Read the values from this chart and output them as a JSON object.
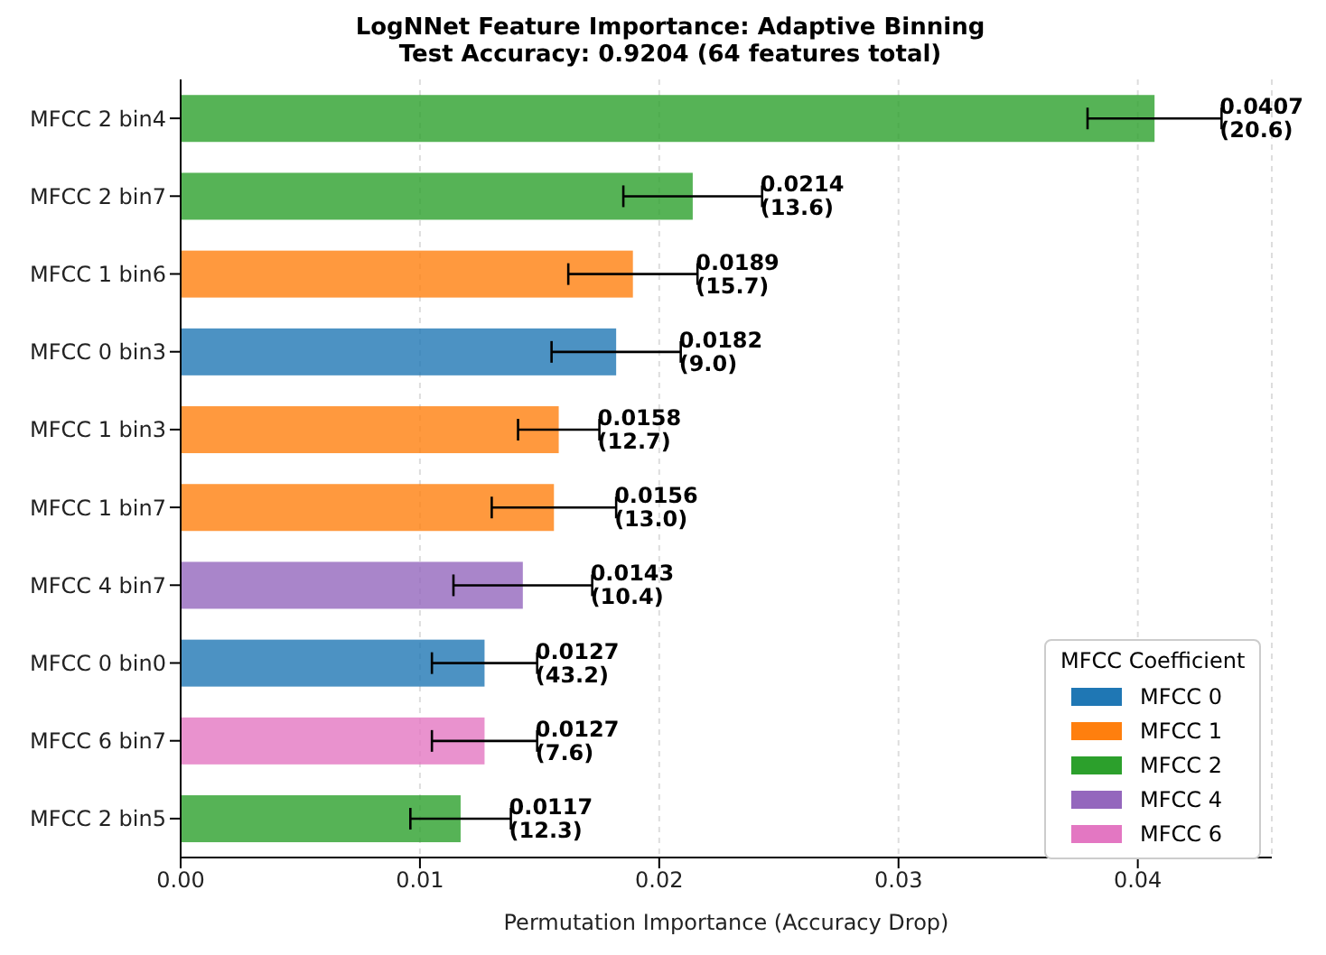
{
  "chart_data": {
    "type": "bar",
    "orientation": "horizontal",
    "stacked": true,
    "title": "LogNNet Feature Importance: Adaptive Binning\nTest Accuracy: 0.9204 (64 features total)",
    "xlabel": "Permutation Importance (Accuracy Drop)",
    "legend_title": "MFCC Coefficient",
    "legend": "bottom right",
    "grid": "x",
    "categories": [
      "MFCC 2 bin4",
      "MFCC 2 bin7",
      "MFCC 1 bin6",
      "MFCC 0 bin3",
      "MFCC 1 bin3",
      "MFCC 1 bin7",
      "MFCC 4 bin7",
      "MFCC 0 bin0",
      "MFCC 6 bin7",
      "MFCC 2 bin5"
    ],
    "series": [
      {
        "name": "MFCC 0",
        "color": "#1f77b4",
        "values": [
          null,
          null,
          null,
          0.0182,
          null,
          null,
          null,
          0.0127,
          null,
          null
        ],
        "errors": [
          null,
          null,
          null,
          0.0027,
          null,
          null,
          null,
          0.0022,
          null,
          null
        ],
        "value_labels": [
          null,
          null,
          null,
          "0.0182\n(9.0)",
          null,
          null,
          null,
          "0.0127\n(43.2)",
          null,
          null
        ]
      },
      {
        "name": "MFCC 1",
        "color": "#ff7f0e",
        "values": [
          null,
          null,
          0.0189,
          null,
          0.0158,
          0.0156,
          null,
          null,
          null,
          null
        ],
        "errors": [
          null,
          null,
          0.0027,
          null,
          0.0017,
          0.0026,
          null,
          null,
          null,
          null
        ],
        "value_labels": [
          null,
          null,
          "0.0189\n(15.7)",
          null,
          "0.0158\n(12.7)",
          "0.0156\n(13.0)",
          null,
          null,
          null,
          null
        ]
      },
      {
        "name": "MFCC 2",
        "color": "#2ca02c",
        "values": [
          0.0407,
          0.0214,
          null,
          null,
          null,
          null,
          null,
          null,
          null,
          0.0117
        ],
        "errors": [
          0.0028,
          0.0029,
          null,
          null,
          null,
          null,
          null,
          null,
          null,
          0.0021
        ],
        "value_labels": [
          "0.0407\n(20.6)",
          "0.0214\n(13.6)",
          null,
          null,
          null,
          null,
          null,
          null,
          null,
          "0.0117\n(12.3)"
        ]
      },
      {
        "name": "MFCC 4",
        "color": "#9467bd",
        "values": [
          null,
          null,
          null,
          null,
          null,
          null,
          0.0143,
          null,
          null,
          null
        ],
        "errors": [
          null,
          null,
          null,
          null,
          null,
          null,
          0.0029,
          null,
          null,
          null
        ],
        "value_labels": [
          null,
          null,
          null,
          null,
          null,
          null,
          "0.0143\n(10.4)",
          null,
          null,
          null
        ]
      },
      {
        "name": "MFCC 6",
        "color": "#e377c2",
        "values": [
          null,
          null,
          null,
          null,
          null,
          null,
          null,
          null,
          0.0127,
          null
        ],
        "errors": [
          null,
          null,
          null,
          null,
          null,
          null,
          null,
          null,
          0.0022,
          null
        ],
        "value_labels": [
          null,
          null,
          null,
          null,
          null,
          null,
          null,
          null,
          "0.0127\n(7.6)",
          null
        ]
      }
    ],
    "xlim": [
      0,
      0.0456
    ],
    "xticks": [
      {
        "value": 0,
        "label": "0.00"
      },
      0.01,
      0.02,
      0.03,
      0.04
    ]
  }
}
